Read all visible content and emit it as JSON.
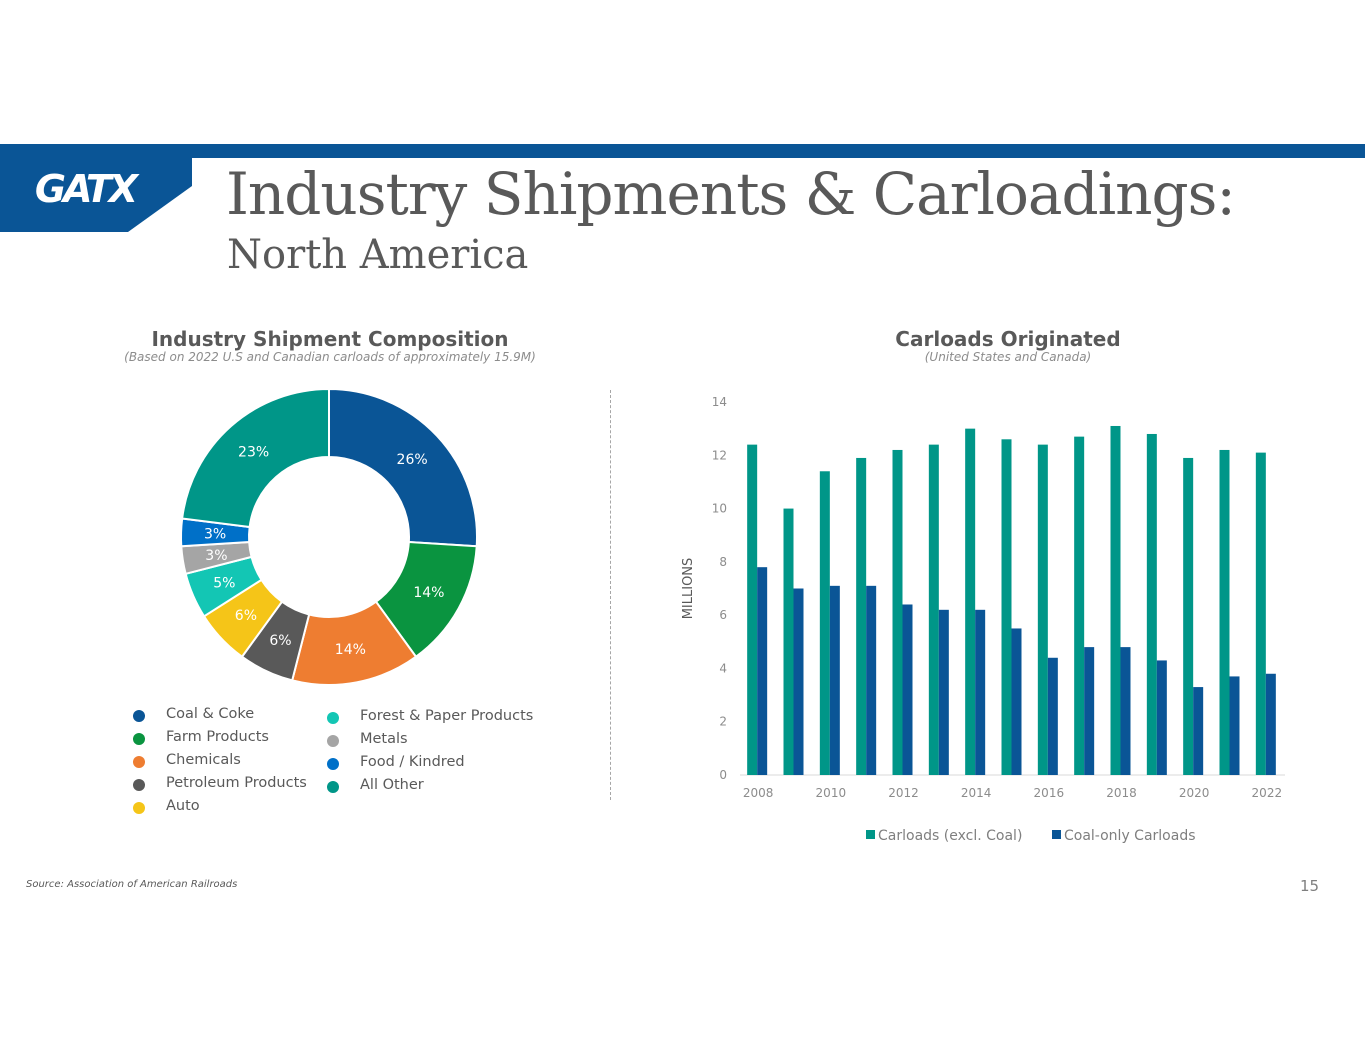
{
  "header": {
    "logo_text": "GATX",
    "title": "Industry Shipments & Carloadings:",
    "subtitle": "North America"
  },
  "colors": {
    "brand_blue": "#0a5596",
    "teal": "#009688",
    "navy": "#0a5596"
  },
  "chart_data": [
    {
      "type": "pie",
      "variant": "donut",
      "title": "Industry Shipment Composition",
      "subtitle": "(Based on 2022 U.S and Canadian carloads of approximately 15.9M)",
      "slices": [
        {
          "label": "Coal & Coke",
          "value": 26,
          "display": "26%",
          "color": "#0a5596"
        },
        {
          "label": "Farm Products",
          "value": 14,
          "display": "14%",
          "color": "#0a9440"
        },
        {
          "label": "Chemicals",
          "value": 14,
          "display": "14%",
          "color": "#ee7d31"
        },
        {
          "label": "Petroleum Products",
          "value": 6,
          "display": "6%",
          "color": "#595959"
        },
        {
          "label": "Auto",
          "value": 6,
          "display": "6%",
          "color": "#f5c518"
        },
        {
          "label": "Forest & Paper Products",
          "value": 5,
          "display": "5%",
          "color": "#13c6b4"
        },
        {
          "label": "Metals",
          "value": 3,
          "display": "3%",
          "color": "#a5a5a5"
        },
        {
          "label": "Food / Kindred",
          "value": 3,
          "display": "3%",
          "color": "#0070c8"
        },
        {
          "label": "All Other",
          "value": 23,
          "display": "23%",
          "color": "#009688"
        }
      ]
    },
    {
      "type": "bar",
      "title": "Carloads Originated",
      "subtitle": "(United States and Canada)",
      "ylabel": "MILLIONS",
      "ylim": [
        0,
        14
      ],
      "yticks": [
        0,
        2,
        4,
        6,
        8,
        10,
        12,
        14
      ],
      "categories": [
        "2008",
        "2009",
        "2010",
        "2011",
        "2012",
        "2013",
        "2014",
        "2015",
        "2016",
        "2017",
        "2018",
        "2019",
        "2020",
        "2021",
        "2022"
      ],
      "xtick_labels": [
        "2008",
        "2010",
        "2012",
        "2014",
        "2016",
        "2018",
        "2020",
        "2022"
      ],
      "series": [
        {
          "name": "Carloads (excl. Coal)",
          "color": "#009688",
          "values": [
            12.4,
            10.0,
            11.4,
            11.9,
            12.2,
            12.4,
            13.0,
            12.6,
            12.4,
            12.7,
            13.1,
            12.8,
            11.9,
            12.2,
            12.1
          ]
        },
        {
          "name": "Coal-only Carloads",
          "color": "#0a5596",
          "values": [
            7.8,
            7.0,
            7.1,
            7.1,
            6.4,
            6.2,
            6.2,
            5.5,
            4.4,
            4.8,
            4.8,
            4.3,
            3.3,
            3.7,
            3.8
          ]
        }
      ]
    }
  ],
  "footer": {
    "source": "Source: Association of American Railroads",
    "page_number": "15"
  }
}
